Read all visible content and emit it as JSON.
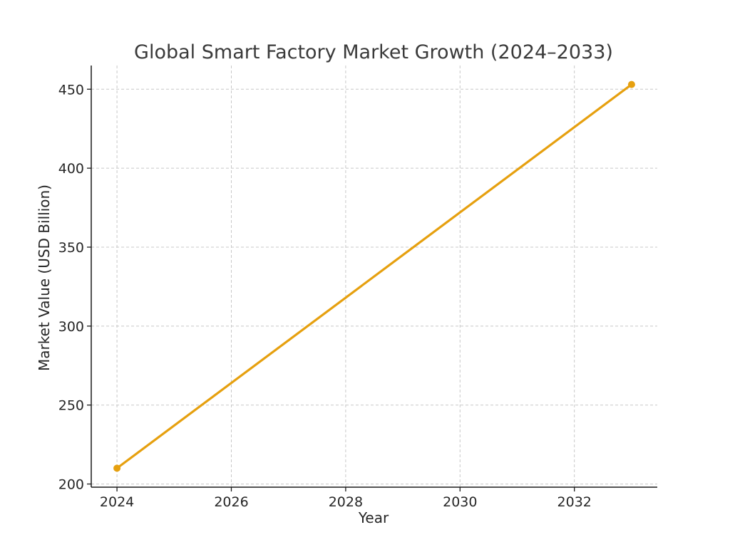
{
  "chart_data": {
    "type": "line",
    "title": "Global Smart Factory Market Growth (2024–2033)",
    "xlabel": "Year",
    "ylabel": "Market Value (USD Billion)",
    "x": [
      2024,
      2033
    ],
    "series": [
      {
        "values": [
          210,
          453
        ],
        "color": "#E6A00F"
      }
    ],
    "xlim": [
      2023.55,
      2033.45
    ],
    "ylim": [
      198,
      465
    ],
    "xticks": [
      "2024",
      "2026",
      "2028",
      "2030",
      "2032"
    ],
    "yticks": [
      "200",
      "250",
      "300",
      "350",
      "400",
      "450"
    ],
    "grid": true,
    "markers": true
  }
}
